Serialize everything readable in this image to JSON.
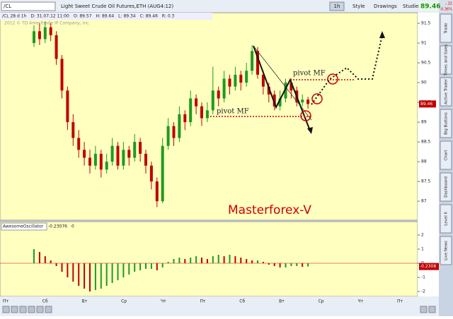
{
  "ui": {
    "symbol": "/CL",
    "instrument": "Light Sweet Crude Oil Futures,ETH (AUG4:12)",
    "interval": "1h",
    "buttons": [
      "Style",
      "Drawings",
      "Studies"
    ],
    "last_price": 89.46,
    "change": "-.32",
    "change_pct": "-0.36%",
    "info": [
      "/CL 28 d 1h",
      "D: 31.07.12 11:00",
      "O: 89.57",
      "H: 89.64",
      "L: 89.34",
      "C: 89.46",
      "R: 0.3"
    ],
    "tabs": [
      "Trade",
      "Times and Sales",
      "Active Trader",
      "Big Buttons",
      "Chart",
      "Dashboard",
      "Level II",
      "Live News"
    ]
  },
  "chart_data": [
    {
      "type": "candlestick",
      "watermark": "2012 © TD Ameritrade IP Company, Inc.",
      "annotations": [
        "pivot MF",
        "pivot MF",
        "Masterforex-V"
      ],
      "x_labels": [
        "Пт",
        "Сб",
        "Вт",
        "Ср",
        "Чт",
        "Пт",
        "Сб",
        "Вт",
        "Ср",
        "Чт",
        "Пт"
      ],
      "ylim": [
        86.52,
        91.59
      ],
      "yticks": [
        87,
        87.5,
        88,
        88.5,
        89,
        89.5,
        90,
        90.5,
        91,
        91.5
      ],
      "open": [
        91.0,
        91.3,
        91.1,
        91.4,
        91.2,
        90.6,
        89.8,
        89.0,
        88.6,
        88.3,
        88.1,
        87.9,
        88.2,
        87.8,
        88.0,
        88.4,
        87.9,
        88.3,
        88.1,
        88.5,
        88.2,
        87.9,
        87.5,
        87.0,
        88.4,
        88.9,
        88.6,
        89.2,
        89.0,
        89.6,
        89.4,
        89.1,
        89.3,
        89.8,
        89.6,
        90.1,
        89.9,
        90.2,
        90.0,
        90.3,
        90.8,
        90.2,
        89.9,
        89.7,
        89.4,
        89.6,
        90.0,
        89.8,
        89.5,
        89.57
      ],
      "high": [
        91.45,
        91.5,
        91.55,
        91.5,
        91.3,
        90.7,
        89.9,
        89.2,
        88.8,
        88.5,
        88.3,
        88.4,
        88.3,
        88.2,
        88.6,
        88.5,
        88.5,
        88.4,
        88.7,
        88.6,
        88.3,
        88.0,
        87.6,
        88.6,
        89.1,
        89.0,
        89.4,
        89.3,
        89.8,
        89.7,
        89.5,
        89.5,
        90.4,
        89.9,
        90.3,
        90.2,
        90.4,
        90.3,
        90.5,
        90.95,
        90.9,
        90.3,
        90.0,
        89.8,
        89.8,
        90.1,
        90.1,
        89.9,
        89.7,
        89.64
      ],
      "low": [
        90.9,
        90.95,
        91.0,
        91.05,
        90.45,
        89.6,
        88.8,
        88.4,
        88.1,
        87.9,
        87.7,
        87.8,
        87.6,
        87.7,
        87.9,
        87.8,
        87.8,
        87.9,
        88.0,
        88.0,
        87.7,
        87.3,
        86.85,
        86.95,
        88.3,
        88.4,
        88.5,
        88.8,
        88.9,
        89.2,
        88.9,
        89.0,
        89.2,
        89.4,
        89.5,
        89.7,
        89.8,
        89.8,
        89.9,
        90.2,
        90.1,
        89.7,
        89.5,
        89.3,
        89.3,
        89.5,
        89.6,
        89.4,
        89.4,
        89.34
      ],
      "close": [
        91.3,
        91.1,
        91.4,
        91.2,
        90.6,
        89.8,
        89.0,
        88.6,
        88.3,
        88.1,
        87.9,
        88.2,
        87.8,
        88.0,
        88.4,
        87.9,
        88.3,
        88.1,
        88.5,
        88.2,
        87.9,
        87.5,
        87.0,
        88.4,
        88.9,
        88.6,
        89.2,
        89.0,
        89.6,
        89.4,
        89.1,
        89.3,
        89.8,
        89.6,
        90.1,
        89.9,
        90.2,
        90.0,
        90.3,
        90.8,
        90.2,
        89.9,
        89.7,
        89.4,
        89.6,
        90.0,
        89.8,
        89.5,
        89.57,
        89.46
      ],
      "up_color": "#1f9a1f",
      "down_color": "#c00000"
    },
    {
      "type": "bar",
      "name": "AwesomeOscillator",
      "last_value": -0.23076,
      "param": "0",
      "marker_label": "-0.2308",
      "ylim": [
        -2.35,
        2.75
      ],
      "yticks": [
        2,
        1,
        0,
        -1,
        -2
      ],
      "values": [
        1.0,
        0.8,
        0.5,
        0.2,
        -0.2,
        -0.6,
        -1.0,
        -1.3,
        -1.6,
        -1.8,
        -2.0,
        -1.9,
        -1.8,
        -1.6,
        -1.4,
        -1.2,
        -1.0,
        -0.8,
        -0.6,
        -0.5,
        -0.4,
        -0.4,
        -0.5,
        -0.3,
        0.1,
        0.3,
        0.4,
        0.3,
        0.4,
        0.5,
        0.4,
        0.3,
        0.5,
        0.6,
        0.5,
        0.6,
        0.5,
        0.4,
        0.3,
        0.2,
        0.2,
        0.1,
        -0.1,
        -0.2,
        -0.3,
        -0.3,
        -0.2,
        -0.2,
        -0.25,
        -0.23076
      ],
      "up_color": "#1f9a1f",
      "down_color": "#c00000"
    }
  ]
}
